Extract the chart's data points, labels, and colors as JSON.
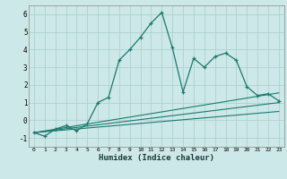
{
  "xlabel": "Humidex (Indice chaleur)",
  "bg_color": "#cce8e8",
  "line_color": "#1a7a6e",
  "grid_color": "#aacece",
  "xlim": [
    -0.5,
    23.5
  ],
  "ylim": [
    -1.5,
    6.5
  ],
  "xticks": [
    0,
    1,
    2,
    3,
    4,
    5,
    6,
    7,
    8,
    9,
    10,
    11,
    12,
    13,
    14,
    15,
    16,
    17,
    18,
    19,
    20,
    21,
    22,
    23
  ],
  "yticks": [
    -1,
    0,
    1,
    2,
    3,
    4,
    5,
    6
  ],
  "main_x": [
    0,
    1,
    2,
    3,
    4,
    5,
    6,
    7,
    8,
    9,
    10,
    11,
    12,
    13,
    14,
    15,
    16,
    17,
    18,
    19,
    20,
    21,
    22,
    23
  ],
  "main_y": [
    -0.7,
    -0.9,
    -0.5,
    -0.3,
    -0.6,
    -0.2,
    1.0,
    1.3,
    3.4,
    4.0,
    4.7,
    5.5,
    6.1,
    4.1,
    1.6,
    3.5,
    3.0,
    3.6,
    3.8,
    3.4,
    1.9,
    1.4,
    1.5,
    1.1
  ],
  "trend_lines": [
    {
      "x0": 0,
      "y0": -0.7,
      "x1": 23,
      "y1": 1.55
    },
    {
      "x0": 0,
      "y0": -0.7,
      "x1": 23,
      "y1": 1.0
    },
    {
      "x0": 0,
      "y0": -0.7,
      "x1": 23,
      "y1": 0.5
    }
  ]
}
